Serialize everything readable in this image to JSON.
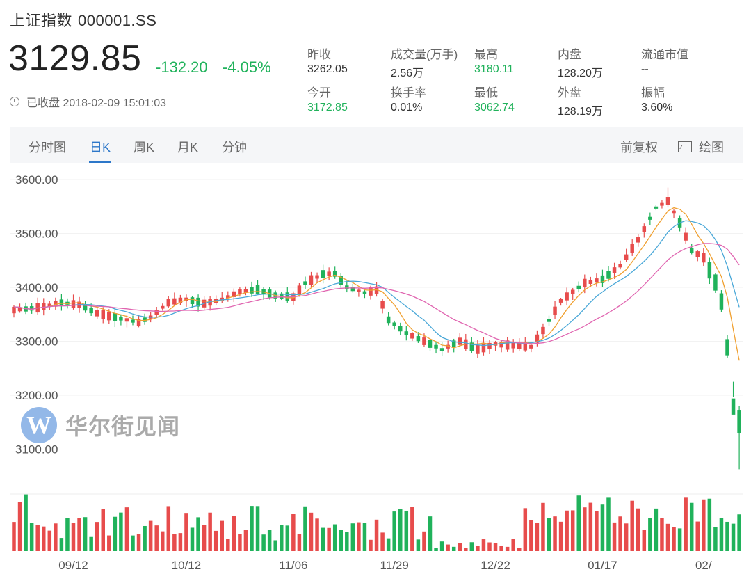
{
  "header": {
    "name": "上证指数",
    "code": "000001.SS",
    "price": "3129.85",
    "change": "-132.20",
    "change_pct": "-4.05%",
    "status": "已收盘 2018-02-09 15:01:03"
  },
  "stats": [
    {
      "label": "昨收",
      "value": "3262.05",
      "color": "#333333"
    },
    {
      "label": "成交量(万手)",
      "value": "2.56万",
      "color": "#333333"
    },
    {
      "label": "最高",
      "value": "3180.11",
      "color": "#20b25b"
    },
    {
      "label": "内盘",
      "value": "128.20万",
      "color": "#333333"
    },
    {
      "label": "流通市值",
      "value": "--",
      "color": "#333333"
    },
    {
      "label": "今开",
      "value": "3172.85",
      "color": "#20b25b"
    },
    {
      "label": "换手率",
      "value": "0.01%",
      "color": "#333333"
    },
    {
      "label": "最低",
      "value": "3062.74",
      "color": "#20b25b"
    },
    {
      "label": "外盘",
      "value": "128.19万",
      "color": "#333333"
    },
    {
      "label": "振幅",
      "value": "3.60%",
      "color": "#333333"
    }
  ],
  "tabs": [
    "分时图",
    "日K",
    "周K",
    "月K",
    "分钟"
  ],
  "active_tab": "日K",
  "controls": {
    "adjust": "前复权",
    "draw": "绘图"
  },
  "watermark": {
    "logo_letter": "W",
    "text": "华尔街见闻"
  },
  "colors": {
    "up": "#e74c4c",
    "down": "#20b25b",
    "accent": "#2d77c9",
    "ma5": "#f0a030",
    "ma10": "#4aa8d8",
    "ma20": "#e065b0"
  },
  "chart_data": {
    "type": "candlestick",
    "y_ticks": [
      "3600.00",
      "3500.00",
      "3400.00",
      "3300.00",
      "3200.00",
      "3100.00"
    ],
    "y_tick_values": [
      3600,
      3500,
      3400,
      3300,
      3200,
      3100
    ],
    "ylim": [
      3050,
      3640
    ],
    "x_ticks": [
      {
        "label": "09/12",
        "index": 10
      },
      {
        "label": "10/12",
        "index": 29
      },
      {
        "label": "11/06",
        "index": 47
      },
      {
        "label": "11/29",
        "index": 64
      },
      {
        "label": "12/22",
        "index": 81
      },
      {
        "label": "01/17",
        "index": 99
      },
      {
        "label": "02/",
        "index": 116
      }
    ],
    "ma_lines": [
      "MA5",
      "MA10",
      "MA20"
    ],
    "waypoints": [
      [
        0,
        3358
      ],
      [
        4,
        3362
      ],
      [
        8,
        3372
      ],
      [
        11,
        3368
      ],
      [
        14,
        3352
      ],
      [
        18,
        3342
      ],
      [
        21,
        3335
      ],
      [
        23,
        3345
      ],
      [
        26,
        3372
      ],
      [
        29,
        3378
      ],
      [
        32,
        3370
      ],
      [
        35,
        3378
      ],
      [
        38,
        3392
      ],
      [
        41,
        3396
      ],
      [
        44,
        3385
      ],
      [
        47,
        3382
      ],
      [
        49,
        3408
      ],
      [
        52,
        3425
      ],
      [
        54,
        3425
      ],
      [
        56,
        3400
      ],
      [
        59,
        3390
      ],
      [
        61,
        3395
      ],
      [
        63,
        3340
      ],
      [
        66,
        3315
      ],
      [
        69,
        3300
      ],
      [
        72,
        3285
      ],
      [
        75,
        3300
      ],
      [
        78,
        3285
      ],
      [
        81,
        3295
      ],
      [
        84,
        3292
      ],
      [
        87,
        3290
      ],
      [
        89,
        3320
      ],
      [
        92,
        3375
      ],
      [
        96,
        3408
      ],
      [
        99,
        3415
      ],
      [
        102,
        3440
      ],
      [
        105,
        3488
      ],
      [
        108,
        3548
      ],
      [
        110,
        3560
      ],
      [
        112,
        3520
      ],
      [
        114,
        3468
      ],
      [
        116,
        3455
      ],
      [
        118,
        3410
      ],
      [
        119,
        3375
      ],
      [
        120,
        3290
      ],
      [
        121,
        3180
      ],
      [
        122,
        3130
      ]
    ],
    "final_candle": {
      "open": 3172.85,
      "high": 3180.11,
      "low": 3062.74,
      "close": 3129.85
    }
  }
}
